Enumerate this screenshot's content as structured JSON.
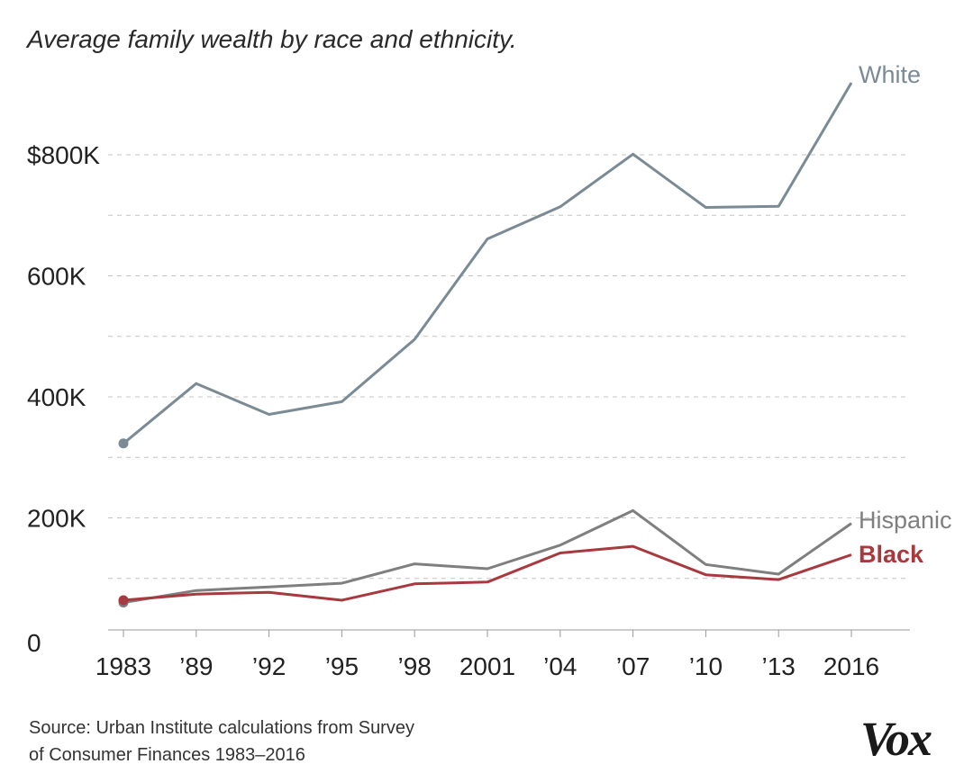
{
  "chart_data": {
    "type": "line",
    "title": "Average family wealth by race and ethnicity.",
    "x": [
      "1983",
      "’89",
      "’92",
      "’95",
      "’98",
      "2001",
      "’04",
      "’07",
      "’10",
      "’13",
      "2016"
    ],
    "y_ticks": [
      "$800K",
      "600K",
      "400K",
      "200K",
      "0"
    ],
    "y_tick_values": [
      800000,
      600000,
      400000,
      200000,
      0
    ],
    "ylim": [
      0,
      940000
    ],
    "grid": "dashed horizontal, every 100K",
    "series": [
      {
        "name": "White",
        "color": "#7a8b95",
        "label_bold": false,
        "values": [
          323000,
          422000,
          371000,
          392000,
          495000,
          661000,
          714000,
          801000,
          713000,
          715000,
          919000
        ]
      },
      {
        "name": "Hispanic",
        "color": "#7f7f7f",
        "label_bold": false,
        "values": [
          60000,
          80000,
          86000,
          92000,
          124000,
          116000,
          155000,
          212000,
          123000,
          107000,
          191000
        ]
      },
      {
        "name": "Black",
        "color": "#a8393f",
        "label_bold": true,
        "values": [
          64000,
          74000,
          77000,
          64000,
          91000,
          94000,
          142000,
          153000,
          106000,
          98000,
          139000
        ]
      }
    ]
  },
  "source": {
    "line1": "Source: Urban Institute calculations from Survey",
    "line2": "of Consumer Finances 1983–2016"
  },
  "logo_text": "Vox"
}
